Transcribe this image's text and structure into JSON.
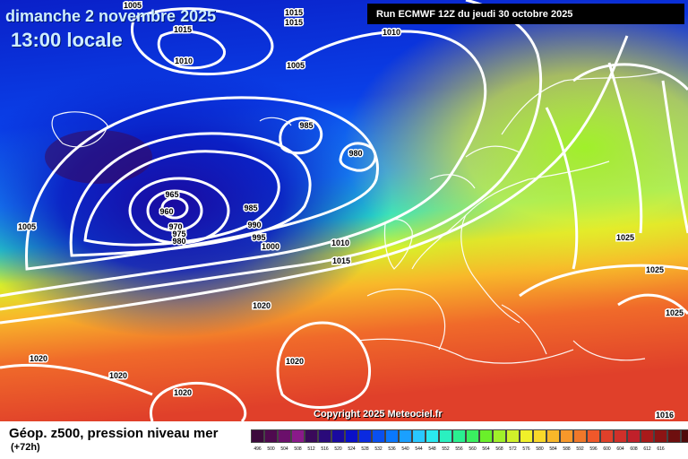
{
  "header": {
    "date_title": "dimanche 2 novembre 2025",
    "time_title": "13:00 locale",
    "run_info": "Run ECMWF 12Z du jeudi 30 octobre 2025"
  },
  "copyright": "Copyright 2025 Meteociel.fr",
  "footer": {
    "title": "Géop. z500, pression niveau mer",
    "subtitle": "(+72h)"
  },
  "legend": {
    "colors": [
      "#3c0a3c",
      "#4f0a4f",
      "#6b0f6b",
      "#8a1a8a",
      "#3a0a5a",
      "#2a0a7a",
      "#1a0aa0",
      "#0a10c8",
      "#0a2ae0",
      "#0a50f0",
      "#0a78ff",
      "#1aa0ff",
      "#2ac8ff",
      "#2ae8f0",
      "#2af0c0",
      "#2af090",
      "#3af060",
      "#6af02a",
      "#a0f02a",
      "#d0f02a",
      "#f0f02a",
      "#f8d82a",
      "#f8b82a",
      "#f8982a",
      "#f0782a",
      "#f0582a",
      "#e0402a",
      "#d0302a",
      "#c0202a",
      "#a81a1a",
      "#8c1414",
      "#6e0f0f",
      "#500a0a",
      "#000000"
    ],
    "ticks": [
      "496",
      "500",
      "504",
      "508",
      "512",
      "516",
      "520",
      "524",
      "528",
      "532",
      "536",
      "540",
      "544",
      "548",
      "552",
      "556",
      "560",
      "564",
      "568",
      "572",
      "576",
      "580",
      "584",
      "588",
      "592",
      "596",
      "600",
      "604",
      "608",
      "612",
      "616"
    ]
  },
  "pressure_labels": [
    {
      "text": "1005"
    },
    {
      "text": "1015"
    },
    {
      "text": "1015"
    },
    {
      "text": "1015"
    },
    {
      "text": "1010"
    },
    {
      "text": "1010"
    },
    {
      "text": "1005"
    },
    {
      "text": "985"
    },
    {
      "text": "980"
    },
    {
      "text": "965"
    },
    {
      "text": "960"
    },
    {
      "text": "970"
    },
    {
      "text": "975"
    },
    {
      "text": "980"
    },
    {
      "text": "985"
    },
    {
      "text": "990"
    },
    {
      "text": "995"
    },
    {
      "text": "1000"
    },
    {
      "text": "1010"
    },
    {
      "text": "1015"
    },
    {
      "text": "1005"
    },
    {
      "text": "1020"
    },
    {
      "text": "1025"
    },
    {
      "text": "1025"
    },
    {
      "text": "1020"
    },
    {
      "text": "1025"
    },
    {
      "text": "1020"
    },
    {
      "text": "1020"
    },
    {
      "text": "1020"
    },
    {
      "text": "1016"
    }
  ]
}
